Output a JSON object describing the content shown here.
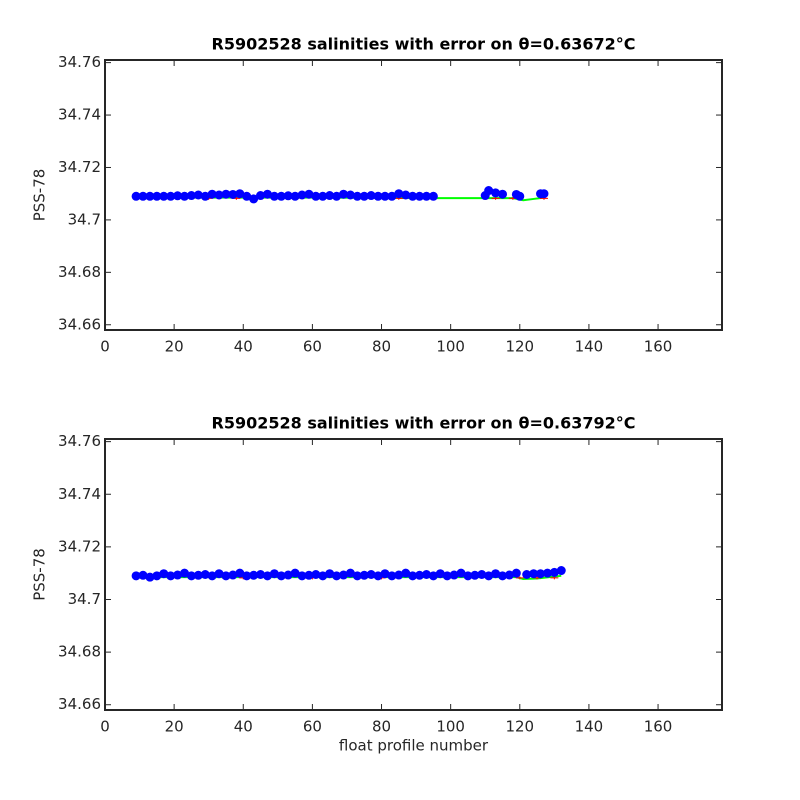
{
  "chart_data": [
    {
      "type": "scatter",
      "title": "R5902528 salinities with error on θ=0.63672°C",
      "ylabel": "PSS-78",
      "xlim": [
        0,
        178.5
      ],
      "ylim": [
        34.658,
        34.761
      ],
      "xticks": [
        0,
        20,
        40,
        60,
        80,
        100,
        120,
        140,
        160
      ],
      "yticks": [
        34.66,
        34.68,
        34.7,
        34.72,
        34.74,
        34.76
      ],
      "series": [
        {
          "style": "line",
          "color": "#00ff00",
          "x": [
            9,
            30,
            60,
            96,
            110,
            118,
            121,
            124,
            127
          ],
          "values": [
            34.7085,
            34.7085,
            34.7085,
            34.7083,
            34.7083,
            34.7083,
            34.7075,
            34.708,
            34.7085
          ]
        },
        {
          "style": "errorbar",
          "color": "#ff0000",
          "x": [
            30,
            38,
            55,
            85,
            113,
            118,
            127
          ],
          "values": [
            34.7082,
            34.7082,
            34.7082,
            34.7082,
            34.7082,
            34.7082,
            34.7082
          ]
        },
        {
          "style": "marker",
          "color": "#0000ff",
          "x": [
            9,
            11,
            13,
            15,
            17,
            19,
            21,
            23,
            25,
            27,
            29,
            31,
            33,
            35,
            37,
            39,
            41,
            43,
            45,
            47,
            49,
            51,
            53,
            55,
            57,
            59,
            61,
            63,
            65,
            67,
            69,
            71,
            73,
            75,
            77,
            79,
            81,
            83,
            85,
            87,
            89,
            91,
            93,
            95,
            110,
            111,
            113,
            115,
            119,
            120,
            126,
            127
          ],
          "values": [
            34.709,
            34.709,
            34.709,
            34.709,
            34.709,
            34.709,
            34.7092,
            34.709,
            34.7093,
            34.7095,
            34.709,
            34.7098,
            34.7095,
            34.7098,
            34.7097,
            34.71,
            34.709,
            34.708,
            34.7093,
            34.7098,
            34.709,
            34.709,
            34.7092,
            34.709,
            34.7095,
            34.7098,
            34.709,
            34.709,
            34.7093,
            34.709,
            34.7098,
            34.7095,
            34.709,
            34.709,
            34.7093,
            34.709,
            34.709,
            34.709,
            34.71,
            34.7095,
            34.709,
            34.709,
            34.709,
            34.709,
            34.7093,
            34.7112,
            34.7103,
            34.7098,
            34.7097,
            34.709,
            34.71,
            34.71
          ]
        }
      ]
    },
    {
      "type": "scatter",
      "title": "R5902528 salinities with error on θ=0.63792°C",
      "ylabel": "PSS-78",
      "xlabel": "float profile number",
      "xlim": [
        0,
        178.5
      ],
      "ylim": [
        34.658,
        34.761
      ],
      "xticks": [
        0,
        20,
        40,
        60,
        80,
        100,
        120,
        140,
        160
      ],
      "yticks": [
        34.66,
        34.68,
        34.7,
        34.72,
        34.74,
        34.76
      ],
      "series": [
        {
          "style": "line",
          "color": "#00ff00",
          "x": [
            9,
            60,
            119,
            121,
            125,
            132
          ],
          "values": [
            34.7085,
            34.7085,
            34.7085,
            34.7078,
            34.708,
            34.709
          ]
        },
        {
          "style": "errorbar",
          "color": "#ff0000",
          "x": [
            14,
            35,
            40,
            60,
            80,
            120,
            125,
            130
          ],
          "values": [
            34.7082,
            34.7082,
            34.7082,
            34.7082,
            34.7082,
            34.7082,
            34.7082,
            34.7082
          ]
        },
        {
          "style": "marker",
          "color": "#0000ff",
          "x": [
            9,
            11,
            13,
            15,
            17,
            19,
            21,
            23,
            25,
            27,
            29,
            31,
            33,
            35,
            37,
            39,
            41,
            43,
            45,
            47,
            49,
            51,
            53,
            55,
            57,
            59,
            61,
            63,
            65,
            67,
            69,
            71,
            73,
            75,
            77,
            79,
            81,
            83,
            85,
            87,
            89,
            91,
            93,
            95,
            97,
            99,
            101,
            103,
            105,
            107,
            109,
            111,
            113,
            115,
            117,
            119,
            122,
            124,
            126,
            128,
            130,
            132
          ],
          "values": [
            34.709,
            34.7092,
            34.7085,
            34.709,
            34.7098,
            34.709,
            34.7093,
            34.71,
            34.709,
            34.7092,
            34.7095,
            34.709,
            34.7098,
            34.709,
            34.7093,
            34.71,
            34.709,
            34.7092,
            34.7095,
            34.709,
            34.7098,
            34.709,
            34.7093,
            34.71,
            34.709,
            34.7092,
            34.7095,
            34.709,
            34.7098,
            34.709,
            34.7093,
            34.71,
            34.709,
            34.7092,
            34.7095,
            34.709,
            34.7098,
            34.709,
            34.7093,
            34.71,
            34.709,
            34.7092,
            34.7095,
            34.709,
            34.7098,
            34.709,
            34.7093,
            34.71,
            34.709,
            34.7092,
            34.7095,
            34.709,
            34.7098,
            34.709,
            34.7093,
            34.71,
            34.7095,
            34.7098,
            34.7098,
            34.71,
            34.7103,
            34.711
          ]
        }
      ]
    }
  ]
}
